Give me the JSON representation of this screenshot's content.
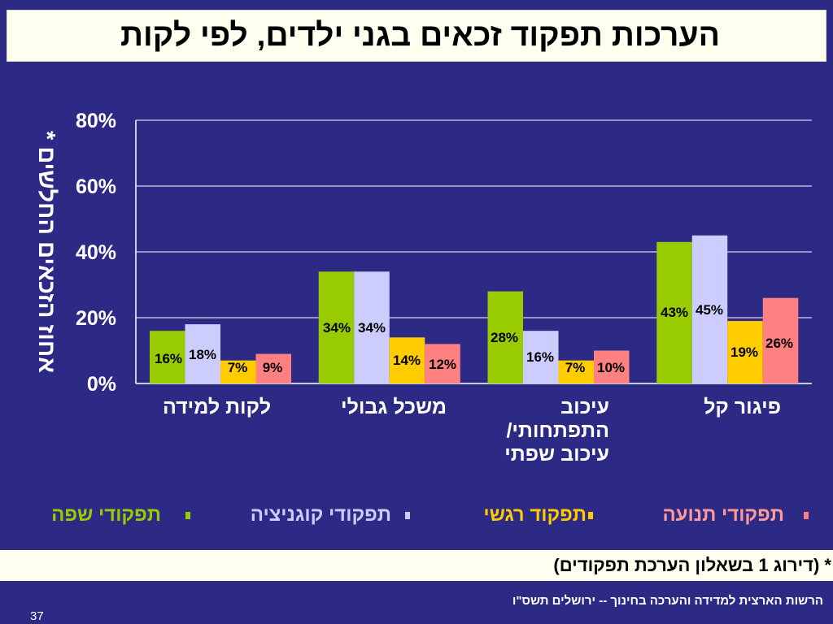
{
  "slide": {
    "title": "הערכות תפקוד זכאים בגני ילדים, לפי לקות",
    "footnote": "* (דירוג 1 בשאלון הערכת תפקודים)",
    "source": "הרשות הארצית למדידה והערכה בחינוך -- ירושלים תשס\"ו",
    "page_number": "37"
  },
  "legend": [
    {
      "label": "תפקודי שפה",
      "color": "#99cc00"
    },
    {
      "label": "תפקודי קוגניציה",
      "color": "#ccccff"
    },
    {
      "label": "תפקוד רגשי",
      "color": "#ffcc00"
    },
    {
      "label": "תפקודי תנועה",
      "color": "#ff8080"
    }
  ],
  "chart_data": {
    "type": "bar",
    "ylabel": "אחוז הזכאים החלשים *",
    "ylim": [
      0,
      80
    ],
    "yticks": [
      "0%",
      "20%",
      "40%",
      "60%",
      "80%"
    ],
    "ytick_values": [
      0,
      20,
      40,
      60,
      80
    ],
    "grid": true,
    "legend_position": "bottom",
    "categories": [
      [
        "לקות למידה"
      ],
      [
        "משכל גבולי"
      ],
      [
        "עיכוב",
        "התפתחותי/",
        "עיכוב שפתי"
      ],
      [
        "פיגור קל"
      ]
    ],
    "series": [
      {
        "name": "תפקודי שפה",
        "color": "#99cc00",
        "values": [
          16,
          34,
          28,
          43
        ],
        "labels": [
          "16%",
          "34%",
          "28%",
          "43%"
        ]
      },
      {
        "name": "תפקודי קוגניציה",
        "color": "#ccccff",
        "values": [
          18,
          34,
          16,
          45
        ],
        "labels": [
          "18%",
          "34%",
          "16%",
          "45%"
        ]
      },
      {
        "name": "תפקוד רגשי",
        "color": "#ffcc00",
        "values": [
          7,
          14,
          7,
          19
        ],
        "labels": [
          "7%",
          "14%",
          "7%",
          "19%"
        ]
      },
      {
        "name": "תפקודי תנועה",
        "color": "#ff8080",
        "values": [
          9,
          12,
          10,
          26
        ],
        "labels": [
          "9%",
          "12%",
          "10%",
          "26%"
        ]
      }
    ]
  }
}
